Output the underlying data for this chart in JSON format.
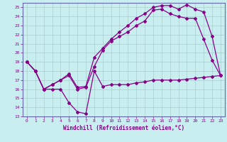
{
  "xlabel": "Windchill (Refroidissement éolien,°C)",
  "bg_color": "#c8eef0",
  "grid_color": "#aacccc",
  "line_color": "#880088",
  "spine_color": "#6666aa",
  "xlim": [
    -0.5,
    23.5
  ],
  "ylim": [
    13,
    25.5
  ],
  "xticks": [
    0,
    1,
    2,
    3,
    4,
    5,
    6,
    7,
    8,
    9,
    10,
    11,
    12,
    13,
    14,
    15,
    16,
    17,
    18,
    19,
    20,
    21,
    22,
    23
  ],
  "yticks": [
    13,
    14,
    15,
    16,
    17,
    18,
    19,
    20,
    21,
    22,
    23,
    24,
    25
  ],
  "series1_x": [
    0,
    1,
    2,
    3,
    4,
    5,
    6,
    7,
    8,
    9,
    10,
    11,
    12,
    13,
    14,
    15,
    16,
    17,
    18,
    19,
    20,
    21,
    22,
    23
  ],
  "series1_y": [
    19,
    18,
    16,
    16,
    16,
    14.5,
    13.5,
    13.3,
    18,
    16.3,
    16.5,
    16.5,
    16.5,
    16.7,
    16.8,
    17,
    17,
    17,
    17,
    17.1,
    17.2,
    17.3,
    17.4,
    17.5
  ],
  "series2_x": [
    0,
    1,
    2,
    3,
    4,
    5,
    6,
    7,
    8,
    9,
    10,
    11,
    12,
    13,
    14,
    15,
    16,
    17,
    18,
    19,
    20,
    21,
    22,
    23
  ],
  "series2_y": [
    19,
    18,
    16,
    16.5,
    17,
    17.5,
    16,
    16.2,
    18.5,
    20.3,
    21.3,
    21.8,
    22.3,
    23.0,
    23.5,
    24.7,
    24.8,
    24.3,
    24.0,
    23.8,
    23.8,
    21.5,
    19.2,
    17.5
  ],
  "series3_x": [
    0,
    1,
    2,
    3,
    4,
    5,
    6,
    7,
    8,
    9,
    10,
    11,
    12,
    13,
    14,
    15,
    16,
    17,
    18,
    19,
    20,
    21,
    22,
    23
  ],
  "series3_y": [
    19,
    18,
    16,
    16.5,
    17,
    17.7,
    16.2,
    16.3,
    19.5,
    20.5,
    21.5,
    22.3,
    23.0,
    23.8,
    24.3,
    25.0,
    25.2,
    25.2,
    24.8,
    25.3,
    24.8,
    24.5,
    21.8,
    17.5
  ]
}
